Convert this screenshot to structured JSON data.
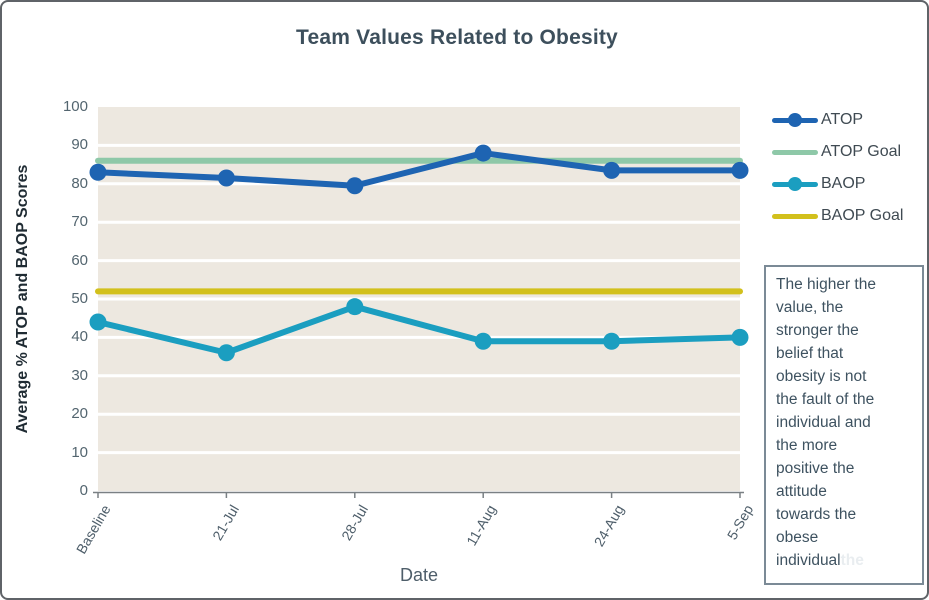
{
  "title": "Team Values Related to Obesity",
  "axes": {
    "y_title": "Average % ATOP and BAOP Scores",
    "x_title": "Date",
    "y_ticks": [
      "100",
      "90",
      "80",
      "70",
      "60",
      "50",
      "40",
      "30",
      "20",
      "10",
      "0"
    ]
  },
  "legend": {
    "items": [
      {
        "label": "ATOP",
        "color": "#1e64b2",
        "marker": true
      },
      {
        "label": "ATOP Goal",
        "color": "#8ec8a8",
        "marker": false
      },
      {
        "label": "BAOP",
        "color": "#1b9ec0",
        "marker": true
      },
      {
        "label": "BAOP Goal",
        "color": "#d2c01c",
        "marker": false
      }
    ]
  },
  "note_box": {
    "text": "The higher the\nvalue, the\nstronger the\nbelief that\nobesity is not\nthe fault of the\nindividual and\nthe more\npositive the\nattitude\ntowards the\nobese\nindividual",
    "ghost_text": "the"
  },
  "chart_data": {
    "type": "line",
    "title": "Team Values Related to Obesity",
    "xlabel": "Date",
    "ylabel": "Average % ATOP and BAOP Scores",
    "categories": [
      "Baseline",
      "21-Jul",
      "28-Jul",
      "11-Aug",
      "24-Aug",
      "5-Sep"
    ],
    "series": [
      {
        "name": "ATOP",
        "color": "#1e64b2",
        "marker": true,
        "values": [
          83,
          81.5,
          79.5,
          88,
          83.5,
          83.5
        ]
      },
      {
        "name": "ATOP Goal",
        "color": "#8ec8a8",
        "marker": false,
        "values": [
          86,
          86,
          86,
          86,
          86,
          86
        ]
      },
      {
        "name": "BAOP",
        "color": "#1b9ec0",
        "marker": true,
        "values": [
          44,
          36,
          48,
          39,
          39,
          40
        ]
      },
      {
        "name": "BAOP Goal",
        "color": "#d2c01c",
        "marker": false,
        "values": [
          52,
          52,
          52,
          52,
          52,
          52
        ]
      }
    ],
    "ylim": [
      0,
      100
    ],
    "ytick_step": 10,
    "grid": "horizontal-white-lines",
    "plot_bg": "#ede8e0",
    "legend_position": "right"
  }
}
